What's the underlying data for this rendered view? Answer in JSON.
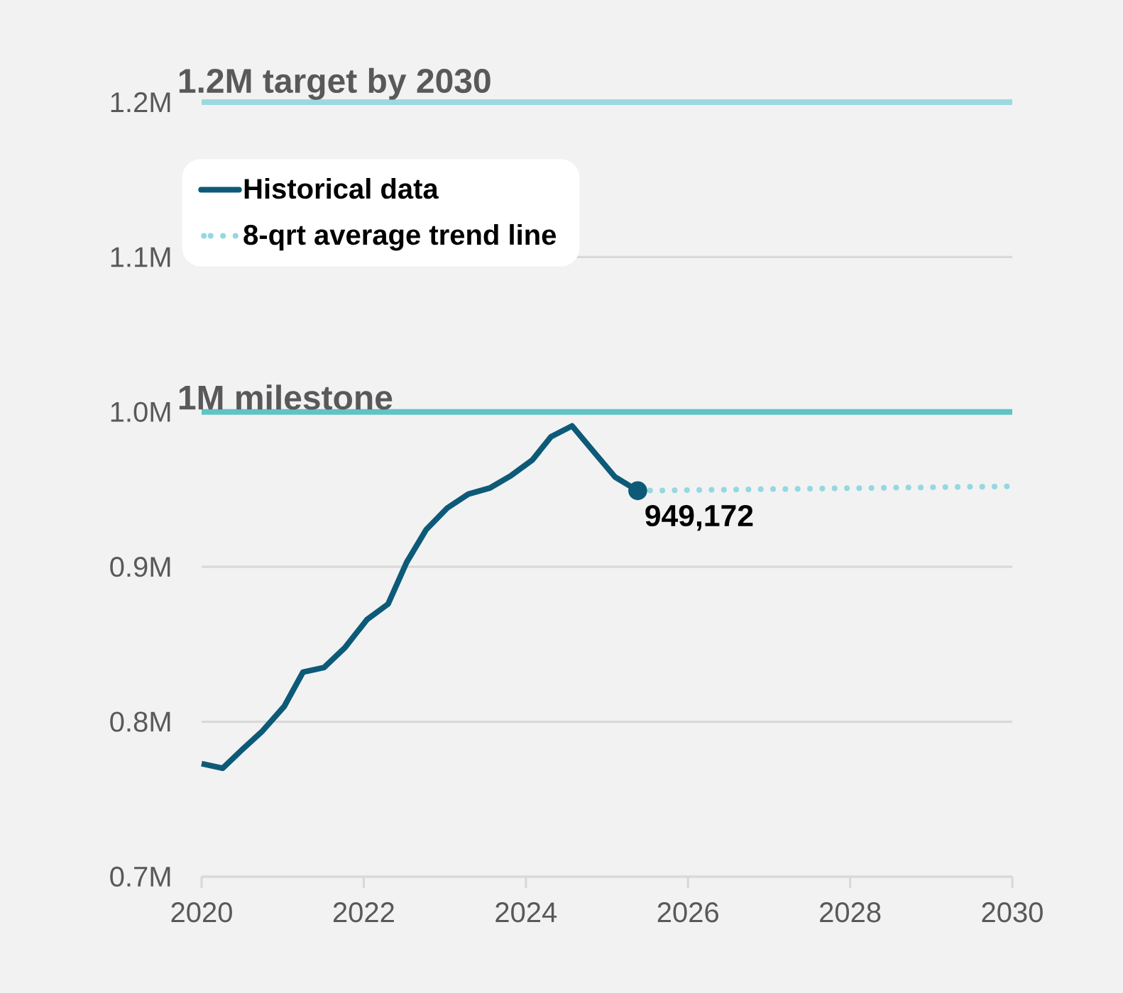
{
  "chart_data": {
    "type": "line",
    "series": [
      {
        "name": "Historical data",
        "color": "#0d5a78",
        "line_style": "solid",
        "x": [
          2020.0,
          2020.26,
          2020.5,
          2020.75,
          2021.02,
          2021.25,
          2021.51,
          2021.77,
          2022.04,
          2022.3,
          2022.53,
          2022.77,
          2023.03,
          2023.29,
          2023.56,
          2023.82,
          2024.08,
          2024.31,
          2024.57,
          2024.81,
          2025.1,
          2025.38
        ],
        "values": [
          773000,
          770000,
          782000,
          794000,
          810000,
          832000,
          835000,
          848000,
          866000,
          876000,
          903000,
          924000,
          938000,
          947000,
          951000,
          959000,
          969000,
          984000,
          991000,
          976000,
          958000,
          949172
        ]
      },
      {
        "name": "8-qrt average trend line",
        "color": "#93d8e2",
        "line_style": "dotted",
        "x": [
          2025.38,
          2030.0
        ],
        "values": [
          949172,
          952000
        ]
      }
    ],
    "xlim": [
      2020,
      2030
    ],
    "xticks": [
      2020,
      2022,
      2024,
      2026,
      2028,
      2030
    ],
    "ylim": [
      700000,
      1200000
    ],
    "yticks": [
      {
        "value": 700000,
        "label": "0.7M"
      },
      {
        "value": 800000,
        "label": "0.8M"
      },
      {
        "value": 900000,
        "label": "0.9M"
      },
      {
        "value": 1000000,
        "label": "1.0M"
      },
      {
        "value": 1100000,
        "label": "1.1M"
      },
      {
        "value": 1200000,
        "label": "1.2M"
      }
    ],
    "grid": "y",
    "legend": "top left",
    "ref_lines": [
      {
        "axis": "y",
        "value": 1200000,
        "label": "1.2M target by 2030",
        "color": "#9cd9df"
      },
      {
        "axis": "y",
        "value": 1000000,
        "label": "1M milestone",
        "color": "#5fc4c4"
      }
    ],
    "annotations": [
      {
        "text": "949,172",
        "x": 2025.38,
        "y": 949172
      }
    ]
  }
}
